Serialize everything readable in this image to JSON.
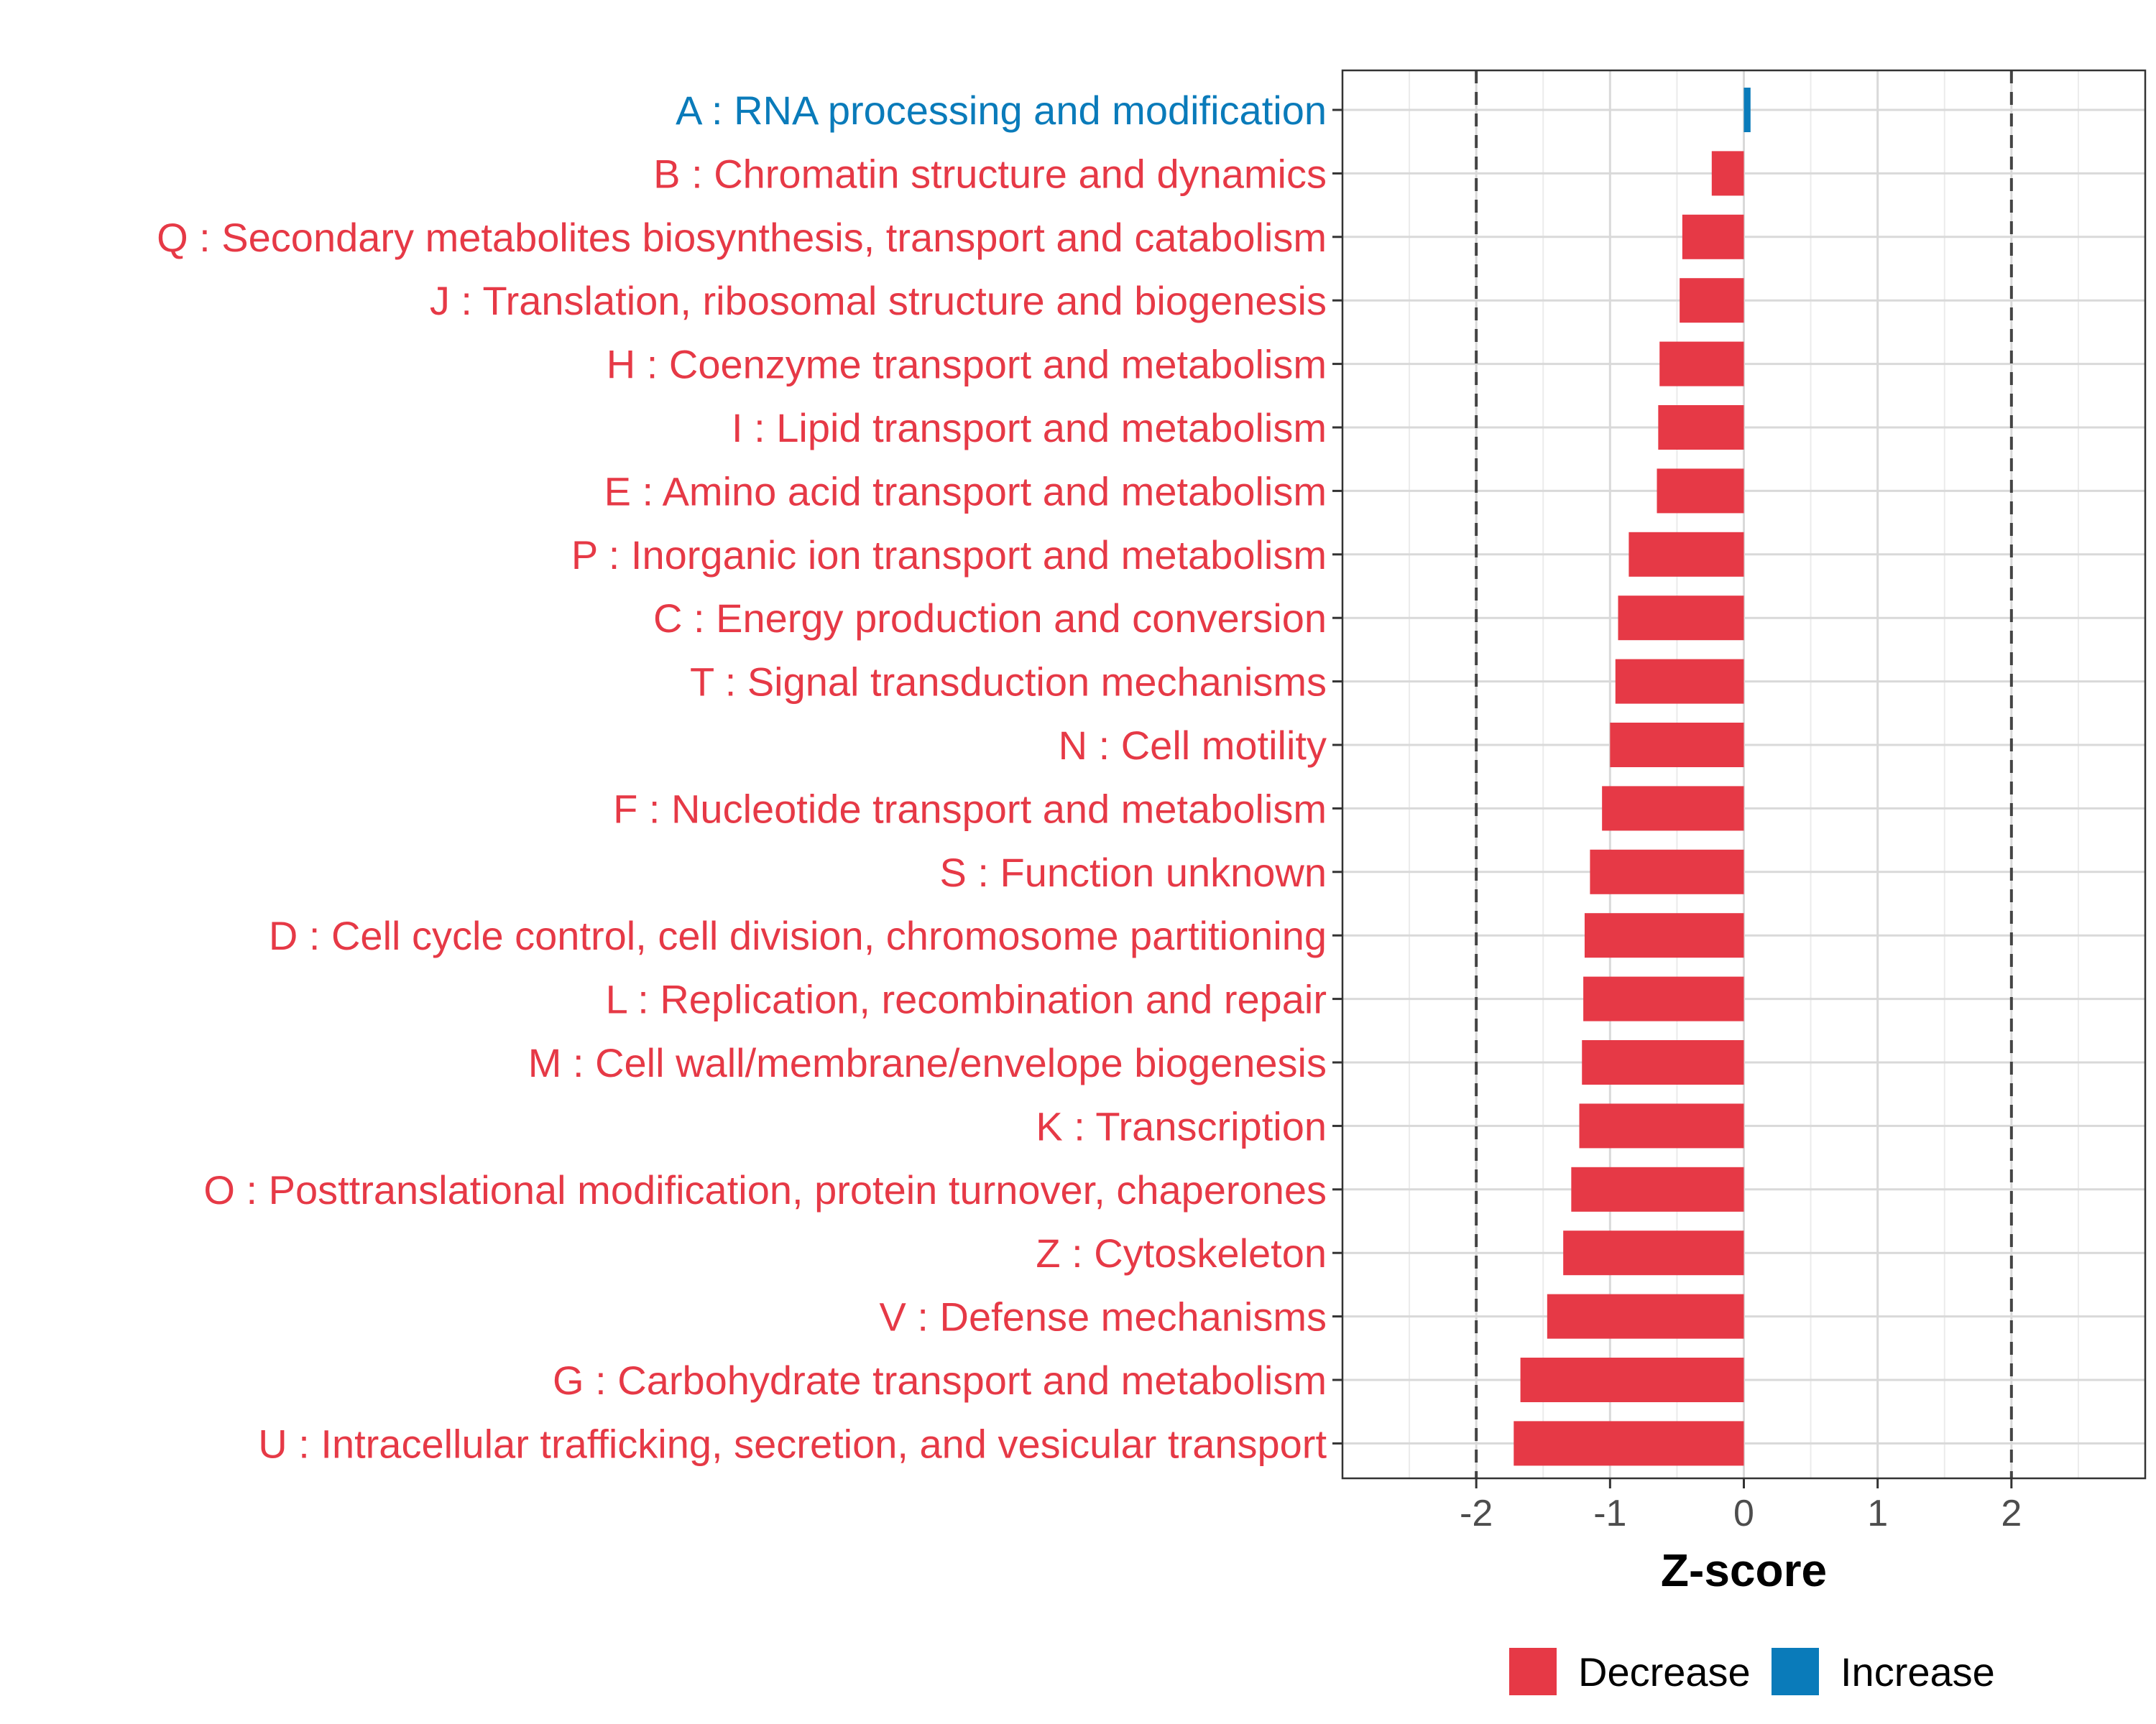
{
  "chart_data": {
    "type": "bar",
    "orientation": "horizontal",
    "xlabel": "Z-score",
    "ylabel": "",
    "title": "",
    "xlim": [
      -3,
      3
    ],
    "xticks": [
      -2,
      -1,
      0,
      1,
      2
    ],
    "xtick_labels": [
      "-2",
      "-1",
      "0",
      "1",
      "2"
    ],
    "reference_lines": [
      -2,
      2
    ],
    "grid": true,
    "categories": [
      "A : RNA processing and modification",
      "B : Chromatin structure and dynamics",
      "Q : Secondary metabolites biosynthesis, transport and catabolism",
      "J : Translation, ribosomal structure and biogenesis",
      "H : Coenzyme transport and metabolism",
      "I : Lipid transport and metabolism",
      "E : Amino acid transport and metabolism",
      "P : Inorganic ion transport and metabolism",
      "C : Energy production and conversion",
      "T : Signal transduction mechanisms",
      "N : Cell motility",
      "F : Nucleotide transport and metabolism",
      "S : Function unknown",
      "D : Cell cycle control, cell division, chromosome partitioning",
      "L : Replication, recombination and repair",
      "M : Cell wall/membrane/envelope biogenesis",
      "K : Transcription",
      "O : Posttranslational modification, protein turnover, chaperones",
      "Z : Cytoskeleton",
      "V : Defense mechanisms",
      "G : Carbohydrate transport and metabolism",
      "U : Intracellular trafficking, secretion, and vesicular transport"
    ],
    "values": [
      0.05,
      -0.24,
      -0.46,
      -0.48,
      -0.63,
      -0.64,
      -0.65,
      -0.86,
      -0.94,
      -0.96,
      -1.0,
      -1.06,
      -1.15,
      -1.19,
      -1.2,
      -1.21,
      -1.23,
      -1.29,
      -1.35,
      -1.47,
      -1.67,
      -1.72
    ],
    "groups": [
      "Increase",
      "Decrease",
      "Decrease",
      "Decrease",
      "Decrease",
      "Decrease",
      "Decrease",
      "Decrease",
      "Decrease",
      "Decrease",
      "Decrease",
      "Decrease",
      "Decrease",
      "Decrease",
      "Decrease",
      "Decrease",
      "Decrease",
      "Decrease",
      "Decrease",
      "Decrease",
      "Decrease",
      "Decrease"
    ],
    "legend": {
      "position": "bottom",
      "entries": [
        {
          "label": "Decrease",
          "color": "#E63946"
        },
        {
          "label": "Increase",
          "color": "#0A7BBA"
        }
      ]
    }
  }
}
